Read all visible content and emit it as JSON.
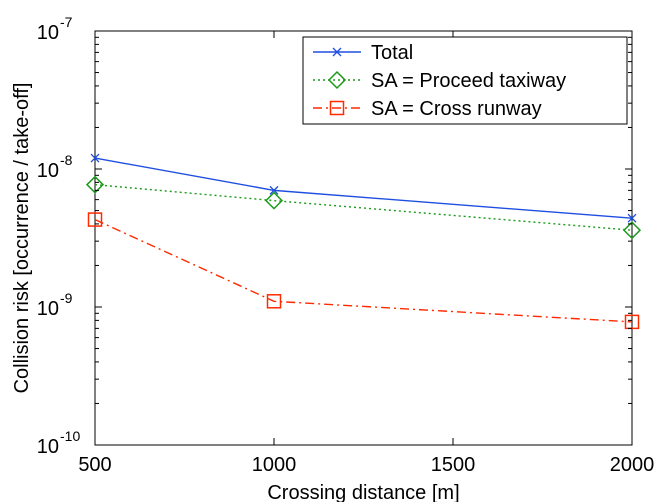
{
  "chart_data": {
    "type": "line",
    "xlabel": "Crossing distance [m]",
    "ylabel": "Collision risk [occurrence / take-off]",
    "xlim": [
      500,
      2000
    ],
    "ylim": [
      1e-10,
      1e-07
    ],
    "yscale": "log",
    "x_ticks": [
      "500",
      "1000",
      "1500",
      "2000"
    ],
    "y_ticks": [
      {
        "base": "10",
        "exp": "-10"
      },
      {
        "base": "10",
        "exp": "-9"
      },
      {
        "base": "10",
        "exp": "-8"
      },
      {
        "base": "10",
        "exp": "-7"
      }
    ],
    "grid": false,
    "legend_position": "top-right",
    "x": [
      500,
      1000,
      2000
    ],
    "series": [
      {
        "name": "Total",
        "values": [
          1.2e-08,
          7e-09,
          4.4e-09
        ],
        "color": "#1f4fe0",
        "style": "solid",
        "marker": "x"
      },
      {
        "name": "SA = Proceed taxiway",
        "values": [
          7.7e-09,
          5.9e-09,
          3.6e-09
        ],
        "color": "#1a9a1a",
        "style": "dotted",
        "marker": "diamond"
      },
      {
        "name": "SA = Cross runway",
        "values": [
          4.3e-09,
          1.1e-09,
          7.8e-10
        ],
        "color": "#ff2a00",
        "style": "dashdot",
        "marker": "square"
      }
    ]
  }
}
